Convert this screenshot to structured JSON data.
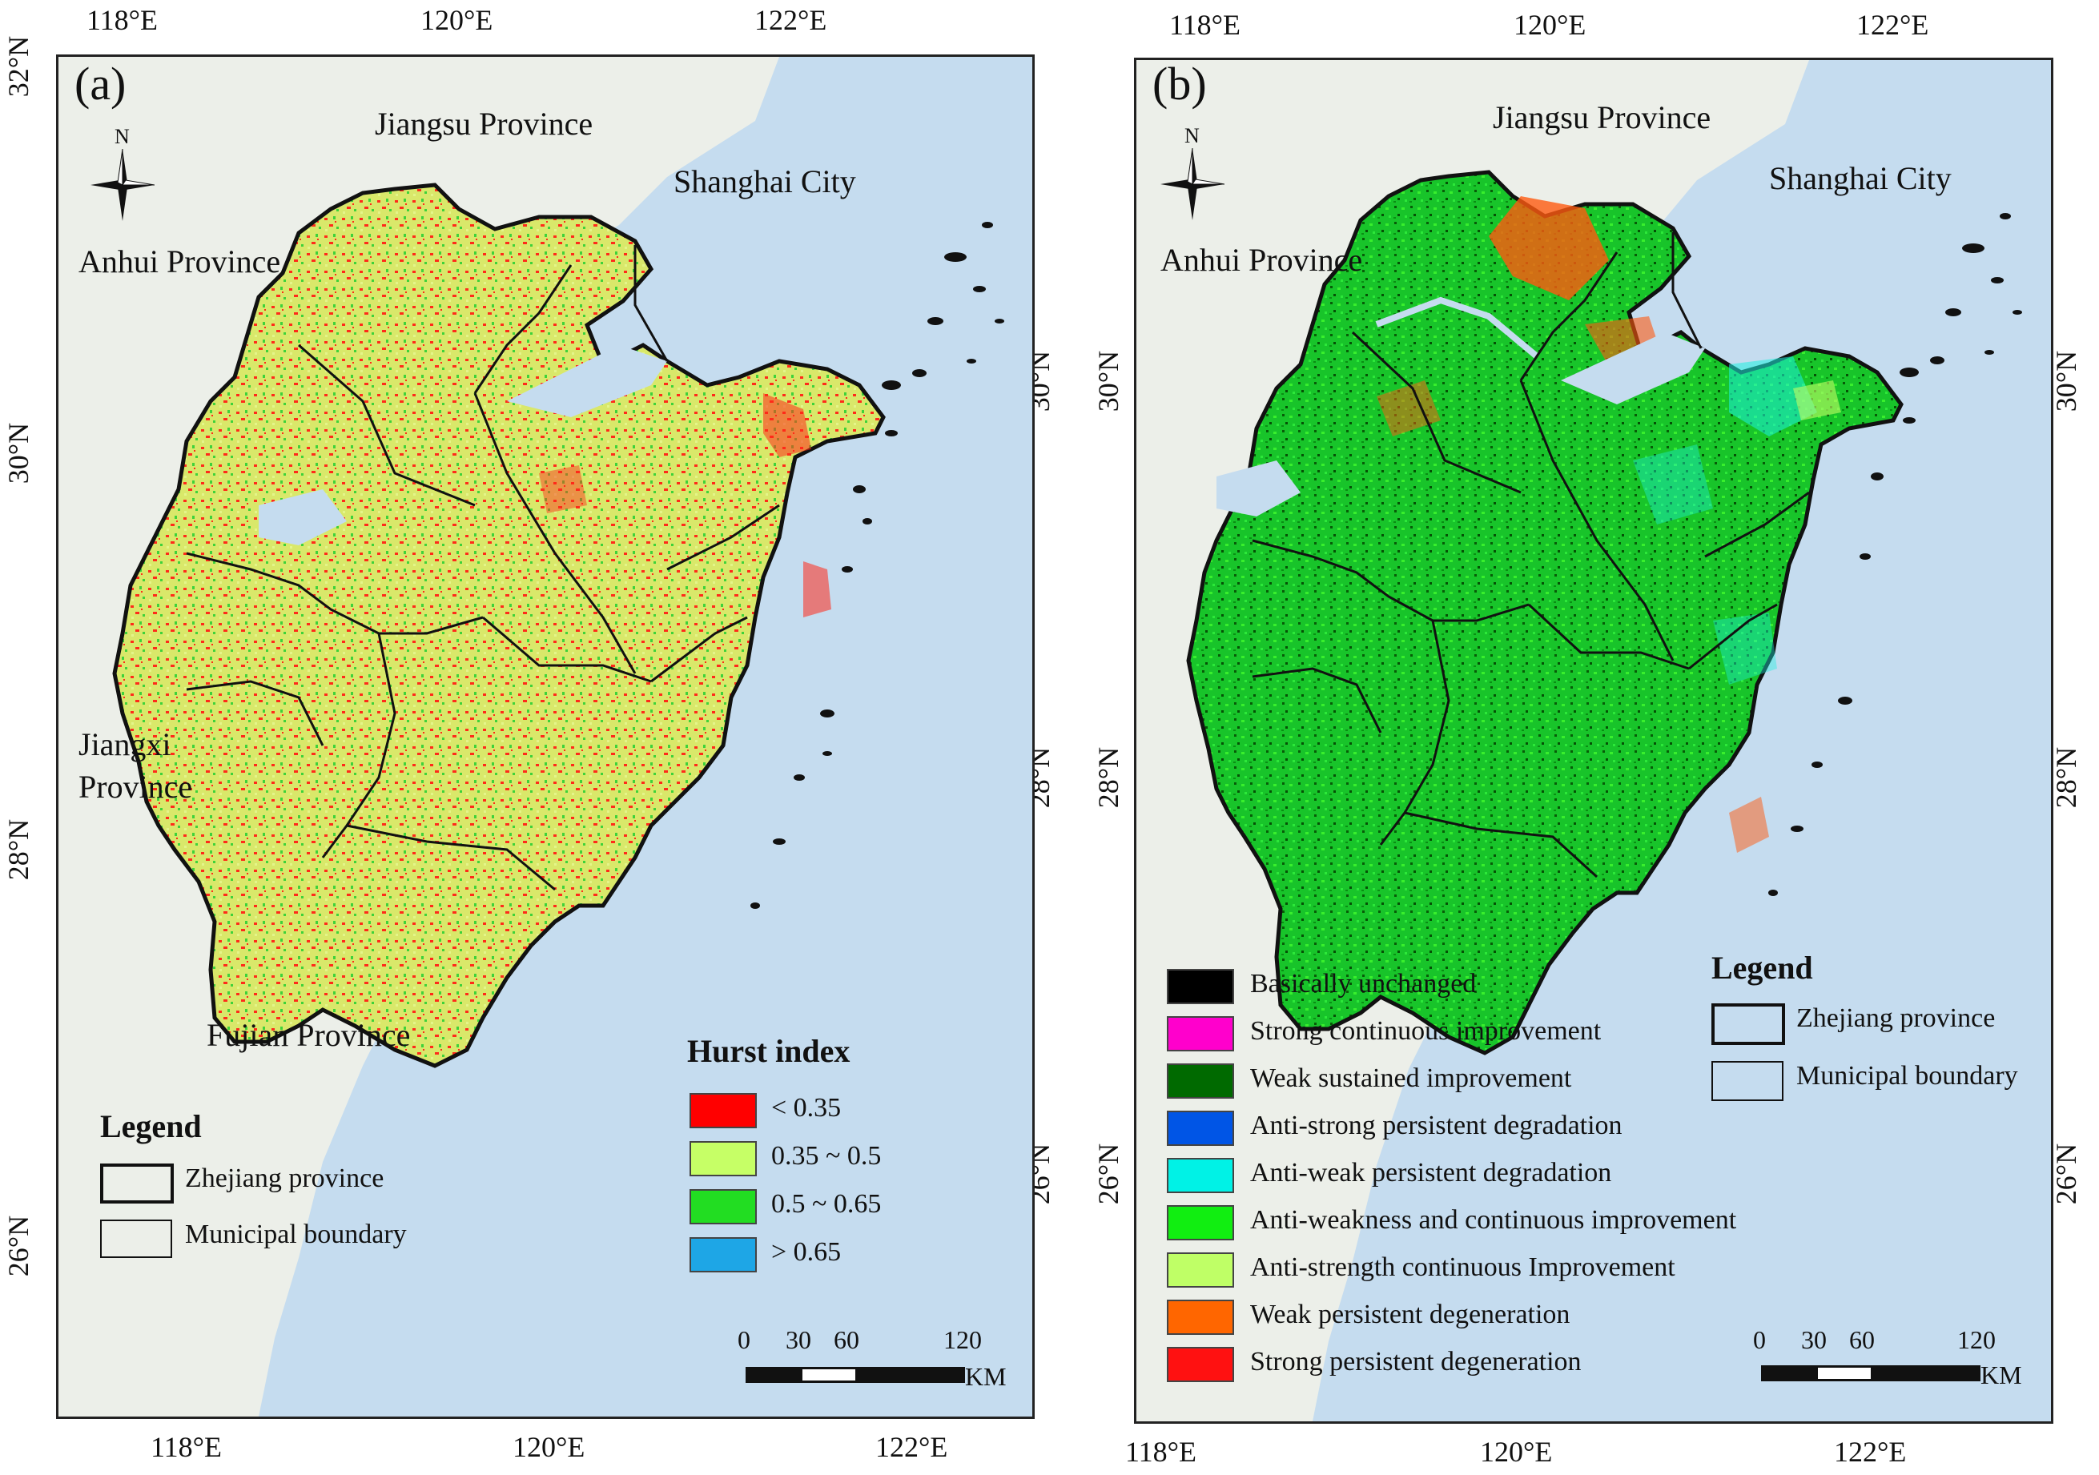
{
  "panels": {
    "a": {
      "tag": "(a)",
      "top_ticks": [
        "118°E",
        "120°E",
        "122°E"
      ],
      "bottom_ticks": [
        "118°E",
        "120°E",
        "122°E"
      ],
      "left_ticks": [
        "32°N",
        "30°N",
        "28°N",
        "26°N"
      ],
      "right_ticks": [
        "30°N",
        "28°N",
        "26°N"
      ],
      "place_labels": {
        "jiangsu": "Jiangsu Province",
        "shanghai": "Shanghai City",
        "anhui": "Anhui Province",
        "jiangxi_1": "Jiangxi",
        "jiangxi_2": "Province",
        "fujian": "Fujian Province"
      },
      "north": "N",
      "hurst_legend": {
        "title": "Hurst index",
        "items": [
          {
            "label": "< 0.35",
            "color": "#ff0000"
          },
          {
            "label": "0.35 ~ 0.5",
            "color": "#c6ff66"
          },
          {
            "label": "0.5 ~ 0.65",
            "color": "#22dd22"
          },
          {
            "label": "> 0.65",
            "color": "#1ea6e6"
          }
        ]
      },
      "boundary_legend": {
        "title": "Legend",
        "items": [
          "Zhejiang province",
          "Municipal boundary"
        ]
      },
      "scale": {
        "ticks": [
          "0",
          "30",
          "60",
          "120"
        ],
        "unit": "KM"
      }
    },
    "b": {
      "tag": "(b)",
      "top_ticks": [
        "118°E",
        "120°E",
        "122°E"
      ],
      "bottom_ticks": [
        "118°E",
        "120°E",
        "122°E"
      ],
      "left_ticks": [
        "30°N",
        "28°N",
        "26°N"
      ],
      "right_ticks": [
        "30°N",
        "28°N",
        "26°N"
      ],
      "place_labels": {
        "jiangsu": "Jiangsu Province",
        "shanghai": "Shanghai City",
        "anhui": "Anhui Province"
      },
      "north": "N",
      "trend_legend": {
        "items": [
          {
            "label": "Basically unchanged",
            "color": "#000000"
          },
          {
            "label": "Strong continuous improvement",
            "color": "#ff00cc"
          },
          {
            "label": "Weak sustained improvement",
            "color": "#006a00"
          },
          {
            "label": "Anti-strong persistent degradation",
            "color": "#0055e6"
          },
          {
            "label": "Anti-weak persistent degradation",
            "color": "#00f2e6"
          },
          {
            "label": "Anti-weakness and continuous improvement",
            "color": "#11ee11"
          },
          {
            "label": "Anti-strength continuous Improvement",
            "color": "#bfff66"
          },
          {
            "label": "Weak persistent degeneration",
            "color": "#ff6600"
          },
          {
            "label": "Strong persistent degeneration",
            "color": "#ff1111"
          }
        ]
      },
      "boundary_legend": {
        "title": "Legend",
        "items": [
          "Zhejiang province",
          "Municipal boundary"
        ]
      },
      "scale": {
        "ticks": [
          "0",
          "30",
          "60",
          "120"
        ],
        "unit": "KM"
      }
    }
  },
  "colors": {
    "land": "#ecefe9",
    "sea": "#c5dcef",
    "zhejiang_a": "#d9e86a",
    "zhejiang_b": "#0fbf2a"
  }
}
